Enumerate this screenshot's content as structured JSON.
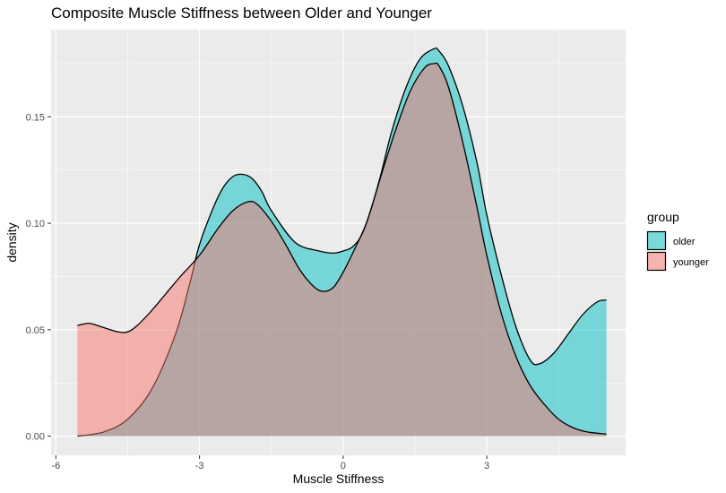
{
  "chart_data": {
    "type": "area",
    "subtype": "density",
    "title": "Composite Muscle Stiffness between Older and Younger",
    "xlabel": "Muscle Stiffness",
    "ylabel": "density",
    "xlim": [
      -6.1,
      5.9
    ],
    "ylim": [
      -0.009,
      0.191
    ],
    "x_ticks": [
      -6,
      -3,
      0,
      3
    ],
    "x_tick_labels": [
      "-6",
      "-3",
      "0",
      "3"
    ],
    "y_ticks": [
      0,
      0.05,
      0.1,
      0.15
    ],
    "y_tick_labels": [
      "0.00",
      "0.05",
      "0.10",
      "0.15"
    ],
    "grid": true,
    "legend": {
      "title": "group",
      "position": "right"
    },
    "series": [
      {
        "name": "older",
        "color": "#00bfc4",
        "x": [
          -5.55,
          -5.0,
          -4.5,
          -4.0,
          -3.5,
          -3.2,
          -3.0,
          -2.7,
          -2.5,
          -2.3,
          -2.1,
          -1.9,
          -1.7,
          -1.5,
          -1.0,
          -0.5,
          -0.2,
          0.0,
          0.2,
          0.4,
          0.6,
          0.8,
          1.0,
          1.3,
          1.6,
          1.9,
          2.0,
          2.2,
          2.5,
          2.8,
          3.0,
          3.3,
          3.6,
          3.9,
          4.1,
          4.4,
          4.7,
          5.0,
          5.3,
          5.5
        ],
        "y": [
          0.0,
          0.002,
          0.008,
          0.022,
          0.048,
          0.072,
          0.09,
          0.108,
          0.117,
          0.122,
          0.123,
          0.121,
          0.115,
          0.106,
          0.091,
          0.087,
          0.086,
          0.087,
          0.089,
          0.095,
          0.108,
          0.124,
          0.142,
          0.163,
          0.177,
          0.182,
          0.181,
          0.174,
          0.155,
          0.128,
          0.104,
          0.076,
          0.052,
          0.036,
          0.034,
          0.039,
          0.048,
          0.057,
          0.063,
          0.064
        ]
      },
      {
        "name": "younger",
        "color": "#f8766d",
        "x": [
          -5.55,
          -5.3,
          -5.0,
          -4.7,
          -4.5,
          -4.3,
          -4.0,
          -3.7,
          -3.4,
          -3.0,
          -2.6,
          -2.3,
          -2.0,
          -1.8,
          -1.5,
          -1.2,
          -0.9,
          -0.6,
          -0.4,
          -0.2,
          0.0,
          0.2,
          0.5,
          0.8,
          1.1,
          1.4,
          1.7,
          1.9,
          2.0,
          2.2,
          2.5,
          2.8,
          3.0,
          3.3,
          3.6,
          3.9,
          4.2,
          4.5,
          4.8,
          5.1,
          5.5
        ],
        "y": [
          0.052,
          0.053,
          0.051,
          0.049,
          0.049,
          0.052,
          0.059,
          0.067,
          0.075,
          0.085,
          0.098,
          0.106,
          0.11,
          0.109,
          0.101,
          0.09,
          0.078,
          0.07,
          0.068,
          0.07,
          0.077,
          0.086,
          0.101,
          0.123,
          0.144,
          0.162,
          0.173,
          0.175,
          0.174,
          0.164,
          0.138,
          0.107,
          0.085,
          0.058,
          0.038,
          0.024,
          0.015,
          0.008,
          0.004,
          0.002,
          0.001
        ]
      }
    ]
  }
}
